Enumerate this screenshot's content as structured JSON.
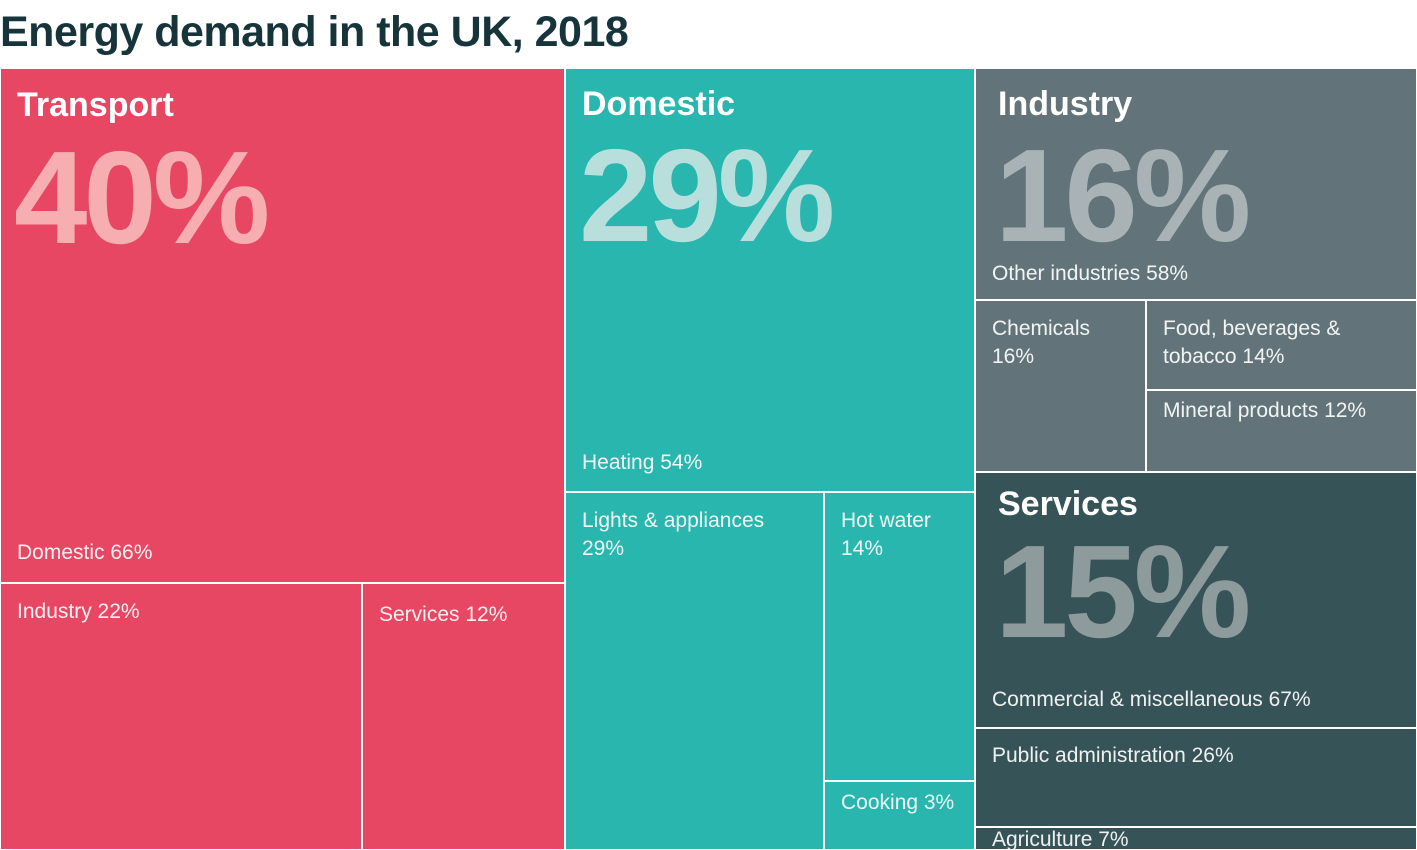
{
  "title": "Energy demand in the UK, 2018",
  "colors": {
    "title": "#17343b",
    "Transport": "#e84763",
    "Domestic": "#29b6ae",
    "Industry": "#627479",
    "Services": "#365358",
    "Transport_pct": "#f6aeb0",
    "Domestic_pct": "#b9dfdd",
    "Industry_pct": "#a9b3b6",
    "Services_pct": "#8d9b9d"
  },
  "chart_data": {
    "type": "treemap",
    "title": "Energy demand in the UK, 2018",
    "unit": "%",
    "sectors": [
      {
        "name": "Transport",
        "value": 40,
        "value_label": "40%",
        "children": [
          {
            "name": "Domestic",
            "value": 66,
            "label": "Domestic 66%"
          },
          {
            "name": "Industry",
            "value": 22,
            "label": "Industry 22%"
          },
          {
            "name": "Services",
            "value": 12,
            "label": "Services 12%"
          }
        ]
      },
      {
        "name": "Domestic",
        "value": 29,
        "value_label": "29%",
        "children": [
          {
            "name": "Heating",
            "value": 54,
            "label": "Heating 54%"
          },
          {
            "name": "Lights & appliances",
            "value": 29,
            "label": "Lights & appliances 29%"
          },
          {
            "name": "Hot water",
            "value": 14,
            "label": "Hot water 14%"
          },
          {
            "name": "Cooking",
            "value": 3,
            "label": "Cooking 3%"
          }
        ]
      },
      {
        "name": "Industry",
        "value": 16,
        "value_label": "16%",
        "children": [
          {
            "name": "Other industries",
            "value": 58,
            "label": "Other industries 58%"
          },
          {
            "name": "Chemicals",
            "value": 16,
            "label": "Chemicals 16%"
          },
          {
            "name": "Food, beverages & tobacco",
            "value": 14,
            "label": "Food, beverages & tobacco 14%"
          },
          {
            "name": "Mineral products",
            "value": 12,
            "label": "Mineral products 12%"
          }
        ]
      },
      {
        "name": "Services",
        "value": 15,
        "value_label": "15%",
        "children": [
          {
            "name": "Commercial & miscellaneous",
            "value": 67,
            "label": "Commercial & miscellaneous 67%"
          },
          {
            "name": "Public administration",
            "value": 26,
            "label": "Public administration 26%"
          },
          {
            "name": "Agriculture",
            "value": 7,
            "label": "Agriculture 7%"
          }
        ]
      }
    ]
  }
}
